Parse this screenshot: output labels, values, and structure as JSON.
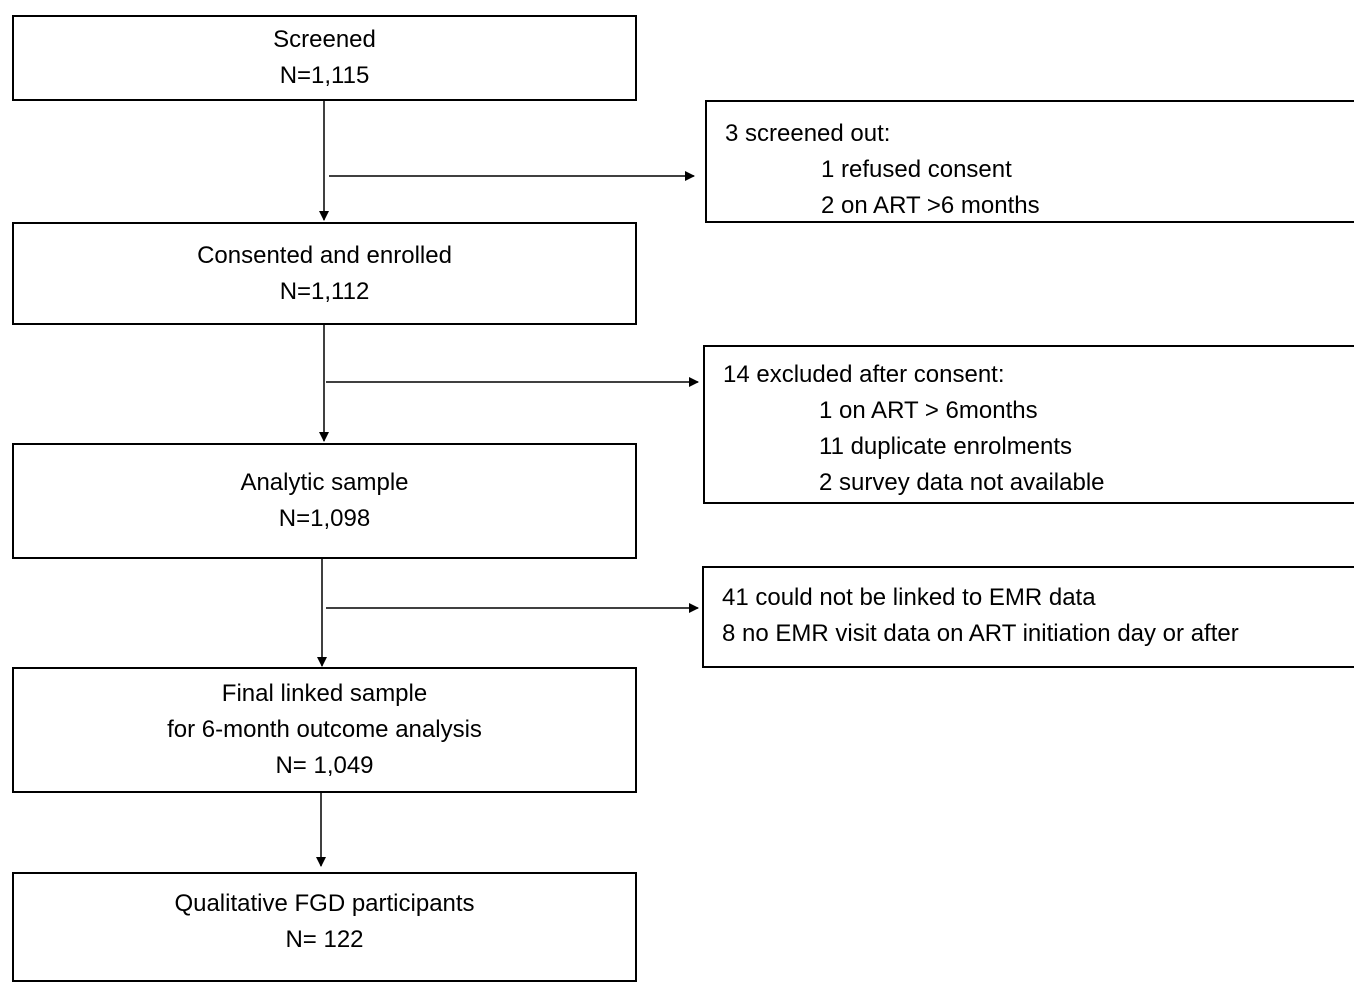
{
  "flowchart": {
    "screened": {
      "title": "Screened",
      "count": "N=1,115"
    },
    "screened_out": {
      "heading": "3 screened out:",
      "items": [
        "1 refused consent",
        "2 on ART >6 months"
      ]
    },
    "enrolled": {
      "title": "Consented and enrolled",
      "count": "N=1,112"
    },
    "excluded": {
      "heading": "14 excluded after consent:",
      "items": [
        "1 on ART > 6months",
        "11 duplicate enrolments",
        "2 survey data not available"
      ]
    },
    "analytic": {
      "title": "Analytic sample",
      "count": "N=1,098"
    },
    "unlinked": {
      "lines": [
        "41 could not be linked to EMR data",
        "8 no EMR visit data on ART initiation day or after"
      ]
    },
    "final": {
      "title": "Final linked sample",
      "subtitle": "for 6-month outcome analysis",
      "count": "N= 1,049"
    },
    "qualitative": {
      "title": "Qualitative FGD participants",
      "count": "N= 122"
    }
  }
}
